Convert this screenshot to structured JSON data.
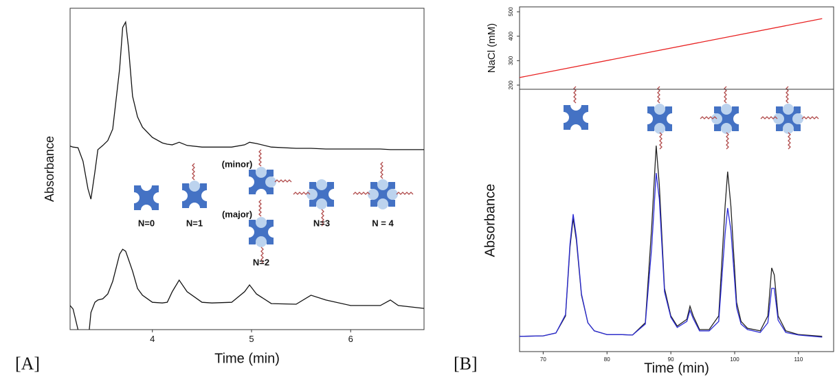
{
  "chart_data": [
    {
      "type": "line",
      "panel_label": "[A]",
      "x_label": "Time (min)",
      "y_label": "Absorbance",
      "xlim": [
        3.17,
        6.74
      ],
      "xticks": [
        4,
        5,
        6
      ],
      "ylim": [
        0,
        100
      ],
      "annotations": [
        "N=0",
        "N=1",
        "(minor)",
        "(major)",
        "N=2",
        "N=3",
        "N = 4"
      ],
      "x": [
        3.17,
        3.2,
        3.25,
        3.3,
        3.35,
        3.38,
        3.42,
        3.45,
        3.5,
        3.55,
        3.6,
        3.67,
        3.7,
        3.73,
        3.76,
        3.8,
        3.85,
        3.9,
        4.0,
        4.1,
        4.15,
        4.2,
        4.27,
        4.35,
        4.5,
        4.6,
        4.8,
        4.93,
        4.98,
        5.05,
        5.2,
        5.45,
        5.6,
        5.75,
        6.0,
        6.3,
        6.4,
        6.48,
        6.74
      ],
      "series": [
        {
          "color": "#111111",
          "values": [
            57.1,
            56.8,
            56.6,
            52.4,
            43.8,
            40.6,
            49.1,
            56.0,
            57.3,
            58.8,
            62.4,
            81.2,
            94.0,
            95.7,
            87.6,
            72.6,
            66.2,
            63.0,
            59.8,
            58.1,
            57.7,
            57.5,
            58.3,
            57.3,
            56.8,
            56.8,
            56.8,
            57.5,
            58.3,
            57.9,
            56.8,
            56.4,
            56.4,
            56.2,
            56.2,
            56.2,
            56.0,
            56.0,
            56.0
          ]
        },
        {
          "color": "#111111",
          "values": [
            7.5,
            6.4,
            0,
            -4.3,
            -4.3,
            5.3,
            8.5,
            9.2,
            9.6,
            11.1,
            15.0,
            23.5,
            25.0,
            24.4,
            21.8,
            18.2,
            12.8,
            10.7,
            8.5,
            8.3,
            8.5,
            11.8,
            15.4,
            11.8,
            8.5,
            8.3,
            8.5,
            11.8,
            13.9,
            11.1,
            8.1,
            7.9,
            10.7,
            9.2,
            7.5,
            7.5,
            9.2,
            7.5,
            6.6
          ]
        }
      ]
    },
    {
      "type": "line",
      "y_label": "NaCl (mM)",
      "xlim": [
        66.3,
        115.5
      ],
      "ylim": [
        183,
        520
      ],
      "yticks": [
        200,
        300,
        400,
        500
      ],
      "x": [
        66.3,
        113.7
      ],
      "series": [
        {
          "color": "#e82020",
          "values": [
            231,
            472
          ]
        }
      ]
    },
    {
      "type": "line",
      "panel_label": "[B]",
      "x_label": "Time (min)",
      "y_label": "Absorbance",
      "xlim": [
        66.3,
        115.5
      ],
      "xticks": [
        70,
        80,
        90,
        100,
        110
      ],
      "ylim": [
        0,
        100
      ],
      "x": [
        66.3,
        70,
        72,
        73.5,
        74.2,
        74.7,
        75.2,
        76,
        77,
        78,
        80,
        82,
        84,
        86,
        87,
        87.7,
        88.2,
        89,
        90,
        91,
        92.5,
        93,
        93.5,
        94.5,
        96,
        97.5,
        98.5,
        98.9,
        99.4,
        100.3,
        101,
        102,
        104,
        105.2,
        105.8,
        106.2,
        106.8,
        108,
        110,
        113.7
      ],
      "series": [
        {
          "color": "#222222",
          "values": [
            5.8,
            6.0,
            7.1,
            13.6,
            39.8,
            50.8,
            42.4,
            21.5,
            11.0,
            7.9,
            6.5,
            6.5,
            6.3,
            11.0,
            47.6,
            78.5,
            63.4,
            24.1,
            13.6,
            9.7,
            12.3,
            17.3,
            13.6,
            8.4,
            8.4,
            13.6,
            55.5,
            68.6,
            55.5,
            18.8,
            11.5,
            8.9,
            7.9,
            13.6,
            31.9,
            29.3,
            13.6,
            7.9,
            6.5,
            5.8
          ]
        },
        {
          "color": "#2b2bd6",
          "values": [
            5.8,
            6.0,
            7.1,
            14.1,
            41.1,
            52.4,
            43.7,
            22.0,
            11.0,
            7.9,
            6.5,
            6.5,
            6.3,
            10.5,
            39.8,
            68.1,
            58.1,
            22.8,
            13.1,
            9.2,
            11.5,
            15.7,
            12.6,
            7.9,
            7.9,
            11.5,
            45.0,
            54.7,
            46.3,
            16.8,
            10.5,
            8.4,
            7.3,
            11.0,
            24.1,
            24.1,
            12.0,
            7.3,
            6.3,
            5.5
          ]
        }
      ]
    }
  ]
}
